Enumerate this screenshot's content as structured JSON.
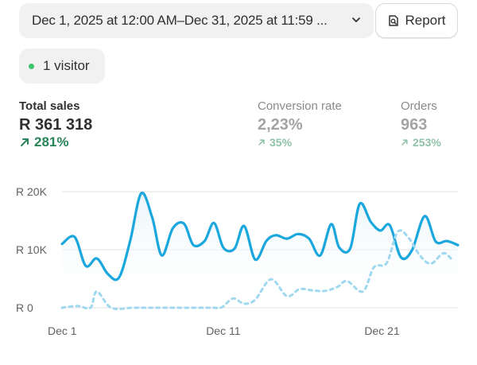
{
  "date_range": {
    "label": "Dec 1, 2025 at 12:00 AM–Dec 31, 2025 at 11:59 ..."
  },
  "report_button": {
    "label": "Report"
  },
  "visitors": {
    "label": "1 visitor",
    "status_color": "#3cc46b"
  },
  "metrics": {
    "total_sales": {
      "label": "Total sales",
      "value": "R 361 318",
      "delta": "281%",
      "trend": "up"
    },
    "conversion_rate": {
      "label": "Conversion rate",
      "value": "2,23%",
      "delta": "35%",
      "trend": "up"
    },
    "orders": {
      "label": "Orders",
      "value": "963",
      "delta": "253%",
      "trend": "up"
    }
  },
  "chart_data": {
    "type": "line",
    "title": "",
    "xlabel": "",
    "ylabel": "",
    "x_tick_labels": [
      "Dec 1",
      "Dec 11",
      "Dec 21"
    ],
    "y_tick_labels": [
      "R 0",
      "R 10K",
      "R 20K"
    ],
    "ylim": [
      0,
      20000
    ],
    "grid": true,
    "series": [
      {
        "style": "solid",
        "color": "#1aa7dd",
        "points": [
          [
            0,
            11000
          ],
          [
            0.8,
            12200
          ],
          [
            1.5,
            7200
          ],
          [
            2.2,
            8500
          ],
          [
            2.9,
            5800
          ],
          [
            3.6,
            5200
          ],
          [
            4.3,
            11500
          ],
          [
            5.0,
            19700
          ],
          [
            5.7,
            15500
          ],
          [
            6.3,
            9000
          ],
          [
            7.0,
            13700
          ],
          [
            7.7,
            14500
          ],
          [
            8.3,
            10800
          ],
          [
            9.0,
            11500
          ],
          [
            9.6,
            14600
          ],
          [
            10.2,
            10300
          ],
          [
            10.9,
            10200
          ],
          [
            11.5,
            14100
          ],
          [
            12.2,
            8300
          ],
          [
            12.9,
            11500
          ],
          [
            13.5,
            12500
          ],
          [
            14.2,
            11900
          ],
          [
            14.9,
            12700
          ],
          [
            15.6,
            11900
          ],
          [
            16.3,
            9000
          ],
          [
            17.0,
            14400
          ],
          [
            17.5,
            10400
          ],
          [
            18.2,
            10200
          ],
          [
            18.8,
            17900
          ],
          [
            19.5,
            14800
          ],
          [
            20.1,
            13300
          ],
          [
            20.7,
            14200
          ],
          [
            21.4,
            8700
          ],
          [
            22.1,
            9900
          ],
          [
            22.9,
            15800
          ],
          [
            23.6,
            11400
          ],
          [
            24.3,
            11500
          ],
          [
            25.0,
            10800
          ]
        ]
      },
      {
        "style": "dashed",
        "color": "#9fd8ef",
        "points": [
          [
            0,
            0
          ],
          [
            1.0,
            300
          ],
          [
            1.8,
            0
          ],
          [
            2.2,
            2800
          ],
          [
            3.1,
            0
          ],
          [
            4.5,
            0
          ],
          [
            6.0,
            0
          ],
          [
            8.0,
            0
          ],
          [
            9.5,
            0
          ],
          [
            10.1,
            100
          ],
          [
            10.8,
            1600
          ],
          [
            11.5,
            700
          ],
          [
            12.2,
            1400
          ],
          [
            13.2,
            4900
          ],
          [
            14.2,
            2000
          ],
          [
            15.0,
            3200
          ],
          [
            15.8,
            3000
          ],
          [
            16.6,
            2900
          ],
          [
            17.4,
            3600
          ],
          [
            18.0,
            4600
          ],
          [
            19.0,
            2800
          ],
          [
            19.7,
            7000
          ],
          [
            20.5,
            7700
          ],
          [
            21.2,
            13100
          ],
          [
            21.9,
            12000
          ],
          [
            22.6,
            9000
          ],
          [
            23.3,
            7600
          ],
          [
            24.1,
            9400
          ],
          [
            24.7,
            8000
          ]
        ]
      }
    ]
  }
}
